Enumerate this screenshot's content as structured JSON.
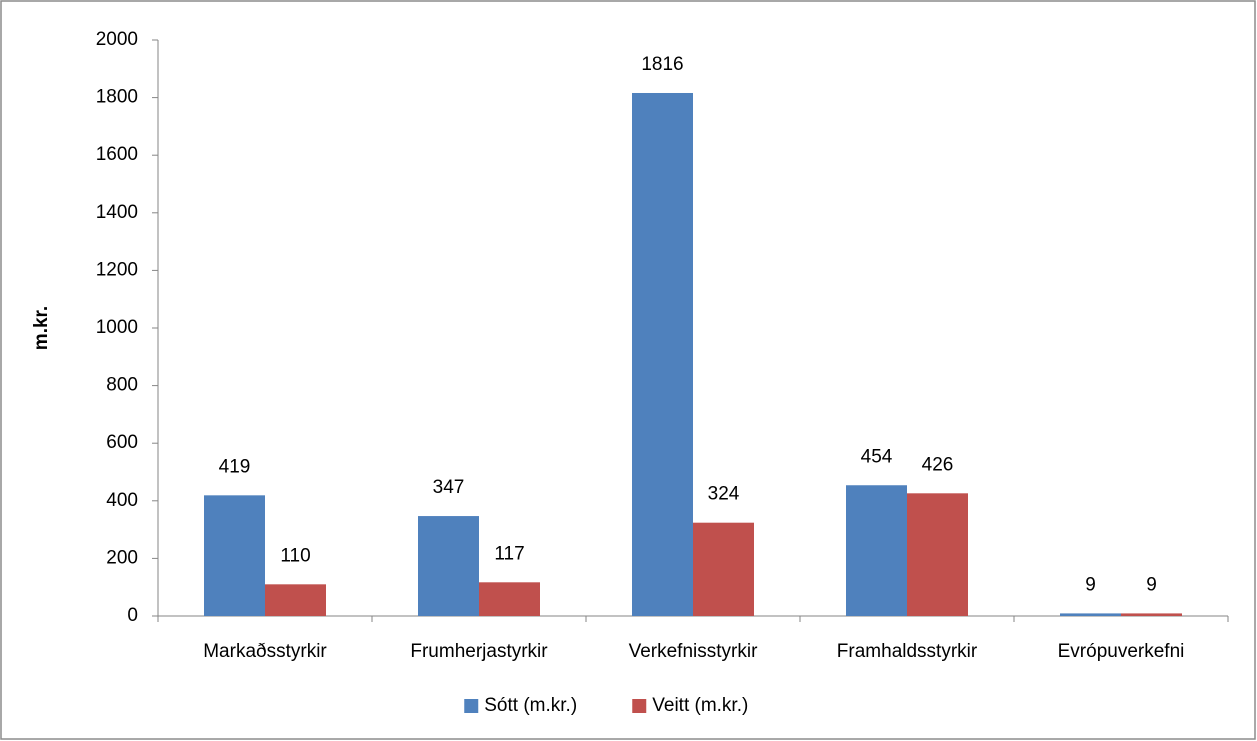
{
  "chart_data": {
    "type": "bar",
    "y_label": "m.kr.",
    "categories": [
      "Markaðsstyrkir",
      "Frumherjastyrkir",
      "Verkefnisstyrkir",
      "Framhaldsstyrkir",
      "Evrópuverkefni"
    ],
    "series": [
      {
        "name": "Sótt (m.kr.)",
        "color": "#4f81bd",
        "values": [
          419,
          347,
          1816,
          454,
          9
        ]
      },
      {
        "name": "Veitt (m.kr.)",
        "color": "#c0504d",
        "values": [
          110,
          117,
          324,
          426,
          9
        ]
      }
    ],
    "ylim": [
      0,
      2000
    ],
    "yticks": [
      0,
      200,
      400,
      600,
      800,
      1000,
      1200,
      1400,
      1600,
      1800,
      2000
    ],
    "grid": false,
    "legend": "bottom"
  }
}
